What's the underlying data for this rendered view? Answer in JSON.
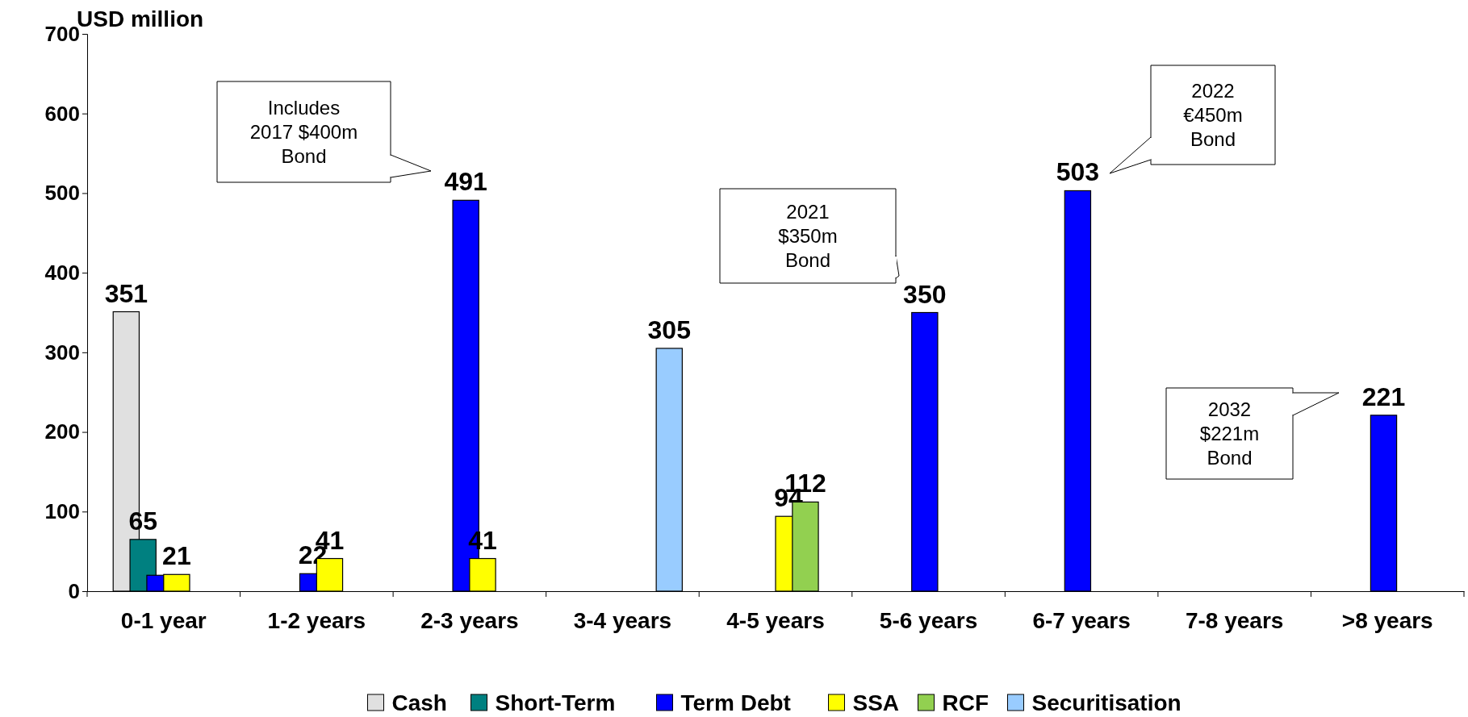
{
  "chart_data": {
    "type": "bar",
    "ylabel": "USD million",
    "categories": [
      "0-1 year",
      "1-2 years",
      "2-3 years",
      "3-4 years",
      "4-5 years",
      "5-6 years",
      "6-7 years",
      "7-8 years",
      ">8 years"
    ],
    "series": [
      {
        "name": "Cash",
        "color": "#e0e0e0",
        "values": [
          351,
          null,
          null,
          null,
          null,
          null,
          null,
          null,
          null
        ],
        "value_labels": [
          "351",
          null,
          null,
          null,
          null,
          null,
          null,
          null,
          null
        ]
      },
      {
        "name": "Short-Term",
        "color": "#008080",
        "values": [
          65,
          null,
          null,
          null,
          null,
          null,
          null,
          null,
          null
        ],
        "value_labels": [
          "65",
          null,
          null,
          null,
          null,
          null,
          null,
          null,
          null
        ]
      },
      {
        "name": "Term Debt",
        "color": "#0000ff",
        "values": [
          20,
          22,
          491,
          0,
          0,
          350,
          503,
          0,
          221
        ],
        "value_labels": [
          null,
          "22",
          "491",
          null,
          null,
          "350",
          "503",
          null,
          "221"
        ]
      },
      {
        "name": "SSA",
        "color": "#ffff00",
        "values": [
          21,
          41,
          41,
          null,
          94,
          null,
          null,
          null,
          null
        ],
        "value_labels": [
          "21",
          "41",
          "41",
          null,
          "94",
          null,
          null,
          null,
          null
        ]
      },
      {
        "name": "RCF",
        "color": "#92d050",
        "values": [
          null,
          null,
          null,
          null,
          112,
          null,
          null,
          null,
          null
        ],
        "value_labels": [
          null,
          null,
          null,
          null,
          "112",
          null,
          null,
          null,
          null
        ]
      },
      {
        "name": "Securitisation",
        "color": "#99ccff",
        "values": [
          null,
          null,
          null,
          305,
          null,
          null,
          null,
          null,
          null
        ],
        "value_labels": [
          null,
          null,
          null,
          "305",
          null,
          null,
          null,
          null,
          null
        ]
      }
    ],
    "ylim": [
      0,
      700
    ],
    "yticks": [
      0,
      100,
      200,
      300,
      400,
      500,
      600,
      700
    ],
    "grid": false,
    "legend": "bottom",
    "annotations": [
      "Includes\n2017 $400m\nBond",
      "2021\n$350m\nBond",
      "2022\n€450m\nBond",
      "2032\n$221m\nBond"
    ]
  }
}
